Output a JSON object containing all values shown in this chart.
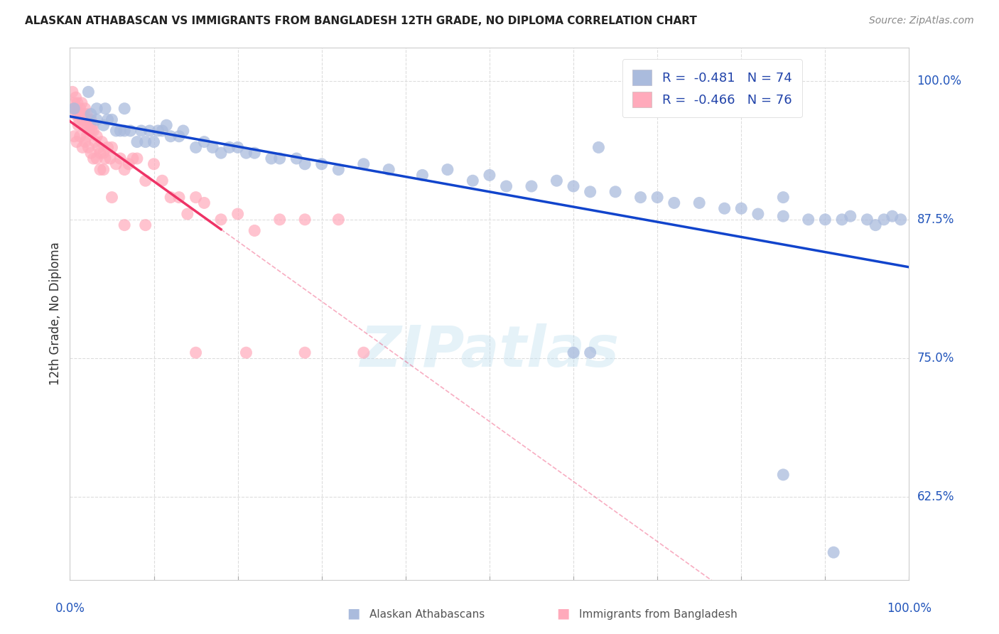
{
  "title": "ALASKAN ATHABASCAN VS IMMIGRANTS FROM BANGLADESH 12TH GRADE, NO DIPLOMA CORRELATION CHART",
  "source": "Source: ZipAtlas.com",
  "ylabel": "12th Grade, No Diploma",
  "ytick_labels": [
    "100.0%",
    "87.5%",
    "75.0%",
    "62.5%"
  ],
  "ytick_values": [
    1.0,
    0.875,
    0.75,
    0.625
  ],
  "xlim": [
    0.0,
    1.0
  ],
  "ylim": [
    0.55,
    1.03
  ],
  "legend_label1": "Alaskan Athabascans",
  "legend_label2": "Immigrants from Bangladesh",
  "R1": -0.481,
  "N1": 74,
  "R2": -0.466,
  "N2": 76,
  "blue_color": "#AABBDD",
  "pink_color": "#FFAABB",
  "blue_line_color": "#1144CC",
  "pink_line_color": "#EE3366",
  "watermark_color": "#BBDDEE",
  "blue_x": [
    0.005,
    0.022,
    0.025,
    0.032,
    0.032,
    0.04,
    0.042,
    0.045,
    0.05,
    0.055,
    0.06,
    0.065,
    0.065,
    0.072,
    0.08,
    0.085,
    0.09,
    0.095,
    0.1,
    0.105,
    0.11,
    0.115,
    0.12,
    0.13,
    0.135,
    0.15,
    0.16,
    0.17,
    0.18,
    0.19,
    0.2,
    0.21,
    0.22,
    0.24,
    0.25,
    0.27,
    0.28,
    0.3,
    0.32,
    0.35,
    0.38,
    0.42,
    0.45,
    0.48,
    0.5,
    0.52,
    0.55,
    0.58,
    0.6,
    0.62,
    0.63,
    0.65,
    0.68,
    0.7,
    0.72,
    0.75,
    0.78,
    0.8,
    0.82,
    0.85,
    0.85,
    0.88,
    0.9,
    0.92,
    0.93,
    0.95,
    0.96,
    0.97,
    0.98,
    0.99,
    0.6,
    0.62,
    0.85,
    0.91
  ],
  "blue_y": [
    0.975,
    0.99,
    0.97,
    0.965,
    0.975,
    0.96,
    0.975,
    0.965,
    0.965,
    0.955,
    0.955,
    0.955,
    0.975,
    0.955,
    0.945,
    0.955,
    0.945,
    0.955,
    0.945,
    0.955,
    0.955,
    0.96,
    0.95,
    0.95,
    0.955,
    0.94,
    0.945,
    0.94,
    0.935,
    0.94,
    0.94,
    0.935,
    0.935,
    0.93,
    0.93,
    0.93,
    0.925,
    0.925,
    0.92,
    0.925,
    0.92,
    0.915,
    0.92,
    0.91,
    0.915,
    0.905,
    0.905,
    0.91,
    0.905,
    0.9,
    0.94,
    0.9,
    0.895,
    0.895,
    0.89,
    0.89,
    0.885,
    0.885,
    0.88,
    0.878,
    0.895,
    0.875,
    0.875,
    0.875,
    0.878,
    0.875,
    0.87,
    0.875,
    0.878,
    0.875,
    0.755,
    0.755,
    0.645,
    0.575
  ],
  "pink_x": [
    0.003,
    0.004,
    0.005,
    0.006,
    0.007,
    0.008,
    0.009,
    0.01,
    0.011,
    0.012,
    0.013,
    0.014,
    0.015,
    0.016,
    0.017,
    0.018,
    0.019,
    0.02,
    0.021,
    0.022,
    0.023,
    0.024,
    0.025,
    0.026,
    0.027,
    0.028,
    0.03,
    0.032,
    0.034,
    0.036,
    0.038,
    0.04,
    0.042,
    0.045,
    0.048,
    0.05,
    0.055,
    0.06,
    0.065,
    0.07,
    0.075,
    0.08,
    0.09,
    0.1,
    0.11,
    0.12,
    0.13,
    0.14,
    0.15,
    0.16,
    0.18,
    0.2,
    0.22,
    0.25,
    0.28,
    0.32,
    0.005,
    0.008,
    0.01,
    0.012,
    0.015,
    0.018,
    0.02,
    0.022,
    0.025,
    0.028,
    0.032,
    0.036,
    0.04,
    0.05,
    0.065,
    0.09,
    0.15,
    0.21,
    0.28,
    0.35
  ],
  "pink_y": [
    0.99,
    0.975,
    0.98,
    0.97,
    0.985,
    0.975,
    0.98,
    0.97,
    0.965,
    0.975,
    0.97,
    0.98,
    0.965,
    0.97,
    0.96,
    0.975,
    0.965,
    0.97,
    0.96,
    0.965,
    0.955,
    0.96,
    0.965,
    0.955,
    0.96,
    0.955,
    0.945,
    0.95,
    0.94,
    0.935,
    0.945,
    0.935,
    0.93,
    0.94,
    0.93,
    0.94,
    0.925,
    0.93,
    0.92,
    0.925,
    0.93,
    0.93,
    0.91,
    0.925,
    0.91,
    0.895,
    0.895,
    0.88,
    0.895,
    0.89,
    0.875,
    0.88,
    0.865,
    0.875,
    0.875,
    0.875,
    0.95,
    0.945,
    0.96,
    0.95,
    0.94,
    0.945,
    0.95,
    0.94,
    0.935,
    0.93,
    0.93,
    0.92,
    0.92,
    0.895,
    0.87,
    0.87,
    0.755,
    0.755,
    0.755,
    0.755
  ],
  "blue_line_x0": 0.0,
  "blue_line_x1": 1.0,
  "pink_line_solid_x0": 0.0,
  "pink_line_solid_x1": 0.18,
  "pink_line_dash_x0": 0.18,
  "pink_line_dash_x1": 1.0
}
